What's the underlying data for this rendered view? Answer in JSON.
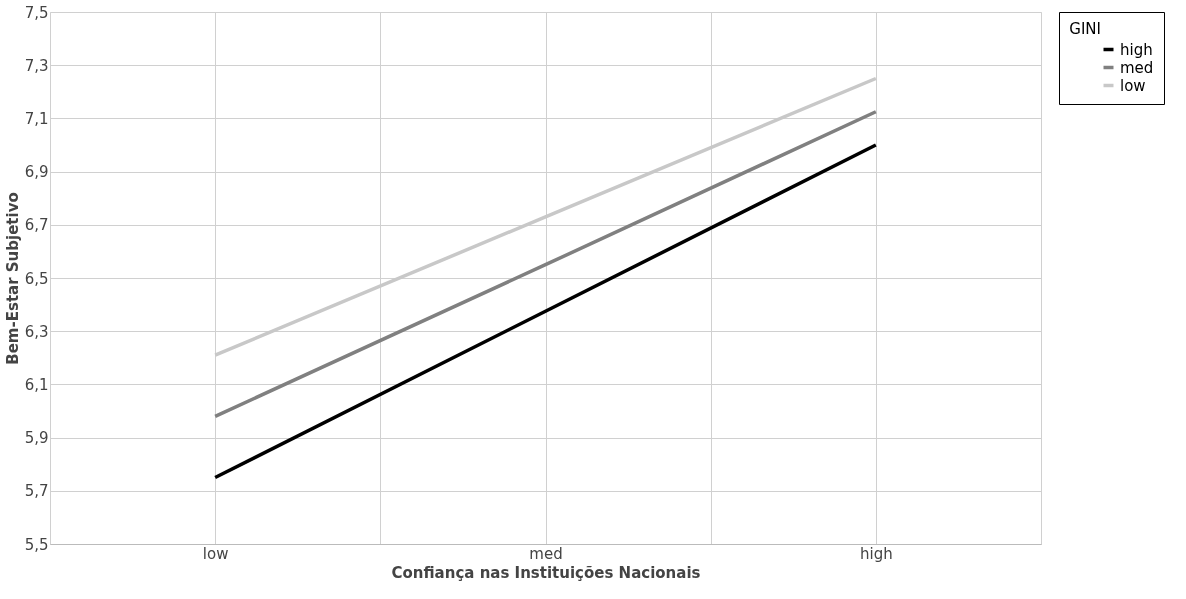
{
  "chart_data": {
    "type": "line",
    "xlabel": "Confiança nas Instituições Nacionais",
    "ylabel": "Bem-Estar Subjetivo",
    "legend_title": "GINI",
    "categories": [
      "low",
      "med",
      "high"
    ],
    "series": [
      {
        "name": "high",
        "color": "#000000",
        "values": [
          5.75,
          6.375,
          7.0
        ]
      },
      {
        "name": "med",
        "color": "#808080",
        "values": [
          5.98,
          6.55,
          7.125
        ]
      },
      {
        "name": "low",
        "color": "#c8c8c8",
        "values": [
          6.21,
          6.73,
          7.25
        ]
      }
    ],
    "ylim": [
      5.5,
      7.5
    ],
    "yticks": [
      {
        "value": 5.5,
        "label": "5,5"
      },
      {
        "value": 5.7,
        "label": "5,7"
      },
      {
        "value": 5.9,
        "label": "5,9"
      },
      {
        "value": 6.1,
        "label": "6,1"
      },
      {
        "value": 6.3,
        "label": "6,3"
      },
      {
        "value": 6.5,
        "label": "6,5"
      },
      {
        "value": 6.7,
        "label": "6,7"
      },
      {
        "value": 6.9,
        "label": "6,9"
      },
      {
        "value": 7.1,
        "label": "7,1"
      },
      {
        "value": 7.3,
        "label": "7,3"
      },
      {
        "value": 7.5,
        "label": "7,5"
      }
    ],
    "grid": true,
    "legend": "right",
    "marker": "none",
    "line_style": "solid"
  }
}
